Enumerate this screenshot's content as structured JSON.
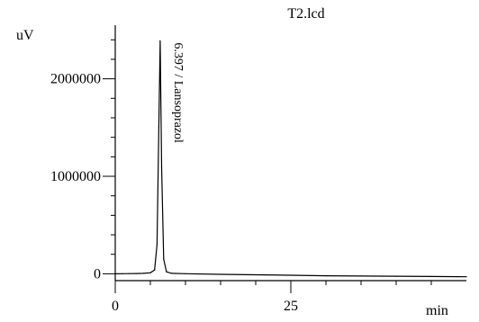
{
  "chart_data": {
    "type": "line",
    "title": "T2.lcd",
    "ylabel": "uV",
    "xlabel": "min",
    "xlim": [
      0,
      50
    ],
    "ylim": [
      -70000,
      2550000
    ],
    "y_ticks": [
      {
        "value": 0,
        "label": "0"
      },
      {
        "value": 1000000,
        "label": "1000000"
      },
      {
        "value": 2000000,
        "label": "2000000"
      }
    ],
    "x_ticks": [
      {
        "value": 0,
        "label": "0"
      },
      {
        "value": 25,
        "label": "25"
      }
    ],
    "series": [
      {
        "x": [
          0,
          1,
          2,
          3,
          4,
          5,
          5.6,
          5.95,
          6.2,
          6.397,
          6.6,
          6.9,
          7.3,
          8,
          10,
          15,
          20,
          25,
          30,
          35,
          40,
          45,
          50
        ],
        "y": [
          0,
          1000,
          2000,
          3000,
          5000,
          10000,
          40000,
          300000,
          1500000,
          2390000,
          1100000,
          150000,
          20000,
          5000,
          1000,
          -5000,
          -10000,
          -15000,
          -20000,
          -23000,
          -25000,
          -28000,
          -30000
        ]
      }
    ],
    "annotations": [
      {
        "text": "6.397 / Lansoprazol",
        "x": 6.397,
        "y": 2390000
      }
    ],
    "line_color": "#000000"
  }
}
